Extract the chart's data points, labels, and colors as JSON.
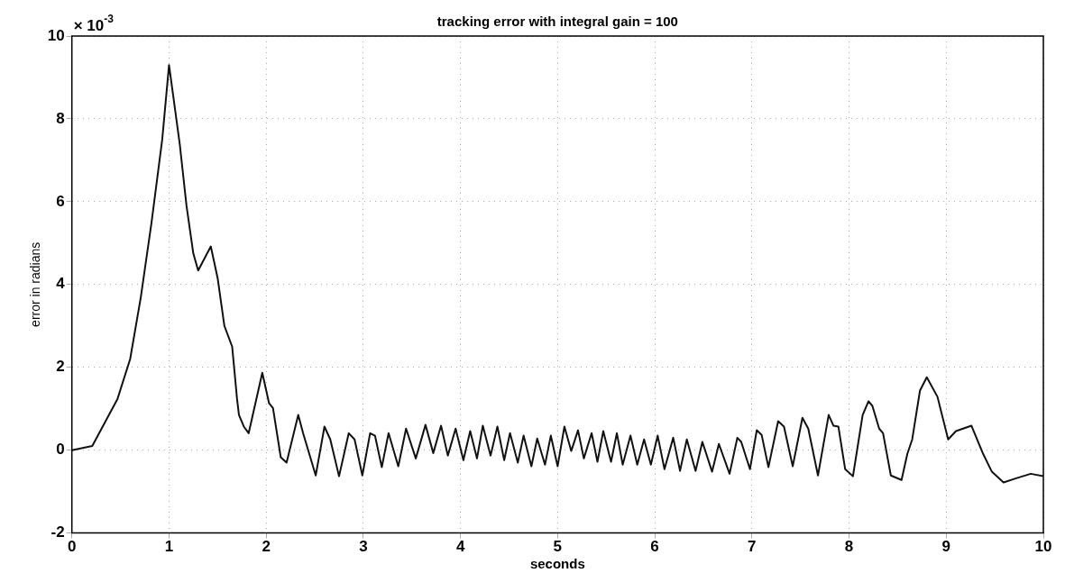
{
  "chart_data": {
    "type": "line",
    "title": "tracking error with integral gain = 100",
    "xlabel": "seconds",
    "ylabel": "error in radians",
    "annotations": [
      "× 10$^{-3}$"
    ],
    "x": [
      0,
      0.21,
      0.47,
      0.6,
      0.71,
      0.82,
      0.93,
      1.0,
      1.11,
      1.18,
      1.25,
      1.3,
      1.43,
      1.5,
      1.57,
      1.65,
      1.7,
      1.72,
      1.77,
      1.82,
      1.96,
      2.03,
      2.07,
      2.15,
      2.21,
      2.33,
      2.38,
      2.51,
      2.6,
      2.66,
      2.75,
      2.85,
      2.91,
      2.99,
      3.07,
      3.12,
      3.19,
      3.26,
      3.36,
      3.44,
      3.54,
      3.64,
      3.72,
      3.8,
      3.87,
      3.95,
      4.03,
      4.1,
      4.17,
      4.23,
      4.31,
      4.38,
      4.45,
      4.51,
      4.59,
      4.65,
      4.73,
      4.79,
      4.87,
      4.93,
      5.0,
      5.07,
      5.14,
      5.21,
      5.27,
      5.35,
      5.41,
      5.47,
      5.55,
      5.61,
      5.67,
      5.75,
      5.82,
      5.89,
      5.96,
      6.03,
      6.1,
      6.19,
      6.26,
      6.33,
      6.42,
      6.49,
      6.59,
      6.66,
      6.77,
      6.85,
      6.89,
      6.98,
      7.05,
      7.1,
      7.17,
      7.27,
      7.33,
      7.42,
      7.52,
      7.58,
      7.68,
      7.79,
      7.84,
      7.89,
      7.96,
      8.04,
      8.14,
      8.2,
      8.24,
      8.31,
      8.35,
      8.43,
      8.54,
      8.6,
      8.65,
      8.73,
      8.8,
      8.91,
      9.02,
      9.1,
      9.26,
      9.38,
      9.47,
      9.59,
      9.72,
      9.87,
      10.0
    ],
    "series": [
      {
        "color": "#111111",
        "values": [
          0,
          0.1,
          1.24,
          2.2,
          3.7,
          5.5,
          7.5,
          9.3,
          7.4,
          5.9,
          4.75,
          4.34,
          4.92,
          4.16,
          3,
          2.5,
          1.24,
          0.85,
          0.57,
          0.41,
          1.87,
          1.13,
          1.02,
          -0.17,
          -0.3,
          0.85,
          0.41,
          -0.61,
          0.57,
          0.26,
          -0.63,
          0.41,
          0.26,
          -0.61,
          0.41,
          0.35,
          -0.41,
          0.41,
          -0.39,
          0.52,
          -0.2,
          0.61,
          -0.07,
          0.59,
          -0.13,
          0.52,
          -0.24,
          0.46,
          -0.2,
          0.59,
          -0.13,
          0.57,
          -0.24,
          0.41,
          -0.3,
          0.35,
          -0.39,
          0.28,
          -0.35,
          0.35,
          -0.39,
          0.57,
          -0.02,
          0.48,
          -0.2,
          0.41,
          -0.28,
          0.46,
          -0.28,
          0.41,
          -0.35,
          0.35,
          -0.35,
          0.26,
          -0.35,
          0.35,
          -0.46,
          0.3,
          -0.5,
          0.26,
          -0.5,
          0.2,
          -0.52,
          0.15,
          -0.57,
          0.3,
          0.2,
          -0.46,
          0.48,
          0.37,
          -0.41,
          0.7,
          0.57,
          -0.39,
          0.78,
          0.52,
          -0.61,
          0.85,
          0.59,
          0.57,
          -0.46,
          -0.63,
          0.85,
          1.18,
          1.07,
          0.52,
          0.41,
          -0.61,
          -0.72,
          -0.09,
          0.26,
          1.44,
          1.76,
          1.29,
          0.26,
          0.46,
          0.59,
          -0.09,
          -0.52,
          -0.78,
          -0.68,
          -0.57,
          -0.63
        ]
      }
    ],
    "xlim": [
      0,
      10
    ],
    "xticks": [
      0,
      1,
      2,
      3,
      4,
      5,
      6,
      7,
      8,
      9,
      10
    ],
    "ylim": [
      -2,
      10
    ],
    "yticks": [
      -2,
      0,
      2,
      4,
      6,
      8,
      10
    ],
    "grid": true,
    "line_style": "solid",
    "marker": "none"
  }
}
